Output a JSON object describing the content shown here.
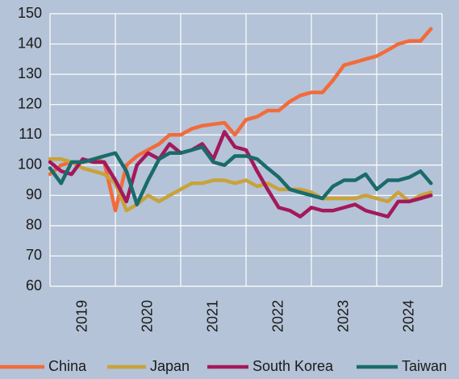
{
  "chart_data": {
    "type": "line",
    "x": [
      2019,
      2019.17,
      2019.33,
      2019.5,
      2019.67,
      2019.83,
      2020,
      2020.17,
      2020.33,
      2020.5,
      2020.67,
      2020.83,
      2021,
      2021.17,
      2021.33,
      2021.5,
      2021.67,
      2021.83,
      2022,
      2022.17,
      2022.33,
      2022.5,
      2022.67,
      2022.83,
      2023,
      2023.17,
      2023.33,
      2023.5,
      2023.67,
      2023.83,
      2024,
      2024.17,
      2024.33,
      2024.5,
      2024.67,
      2024.83
    ],
    "series": [
      {
        "name": "China",
        "color": "#f26b3a",
        "values": [
          97,
          100,
          101,
          101,
          102,
          101,
          85,
          100,
          103,
          105,
          107,
          110,
          110,
          112,
          113,
          113.5,
          114,
          110,
          115,
          116,
          118,
          118,
          121,
          123,
          124,
          124,
          128,
          133,
          134,
          135,
          136,
          138,
          140,
          141,
          141,
          145
        ]
      },
      {
        "name": "Japan",
        "color": "#c9a23a",
        "values": [
          102,
          102,
          101,
          99,
          98,
          97,
          94,
          85,
          87,
          90,
          88,
          90,
          92,
          94,
          94,
          95,
          95,
          94,
          95,
          93,
          94,
          92,
          92,
          92,
          91,
          89,
          89,
          89,
          89,
          90,
          89,
          88,
          91,
          88,
          90,
          91
        ]
      },
      {
        "name": "South Korea",
        "color": "#a3195b",
        "values": [
          101,
          98,
          97,
          102,
          101,
          101,
          95,
          88,
          100,
          104,
          102,
          107,
          104,
          105,
          107,
          102,
          111,
          106,
          105,
          98,
          92,
          86,
          85,
          83,
          86,
          85,
          85,
          86,
          87,
          85,
          84,
          83,
          88,
          88,
          89,
          90
        ]
      },
      {
        "name": "Taiwan",
        "color": "#1a6b6b",
        "values": [
          99,
          94,
          101,
          101,
          102,
          103,
          104,
          98,
          87,
          95,
          102,
          104,
          104,
          105,
          106,
          101,
          100,
          103,
          103,
          102,
          99,
          96,
          92,
          91,
          90,
          89,
          93,
          95,
          95,
          97,
          92,
          95,
          95,
          96,
          98,
          94
        ]
      }
    ],
    "xlim": [
      2019,
      2025
    ],
    "ylim": [
      60,
      150
    ],
    "yticks": [
      60,
      70,
      80,
      90,
      100,
      110,
      120,
      130,
      140,
      150
    ],
    "xticks": [
      {
        "value": 2019,
        "label": "2019"
      },
      {
        "value": 2020,
        "label": "2020"
      },
      {
        "value": 2021,
        "label": "2021"
      },
      {
        "value": 2022,
        "label": "2022"
      },
      {
        "value": 2023,
        "label": "2023"
      },
      {
        "value": 2024,
        "label": "2024"
      }
    ],
    "grid": true,
    "legend": "bottom"
  }
}
